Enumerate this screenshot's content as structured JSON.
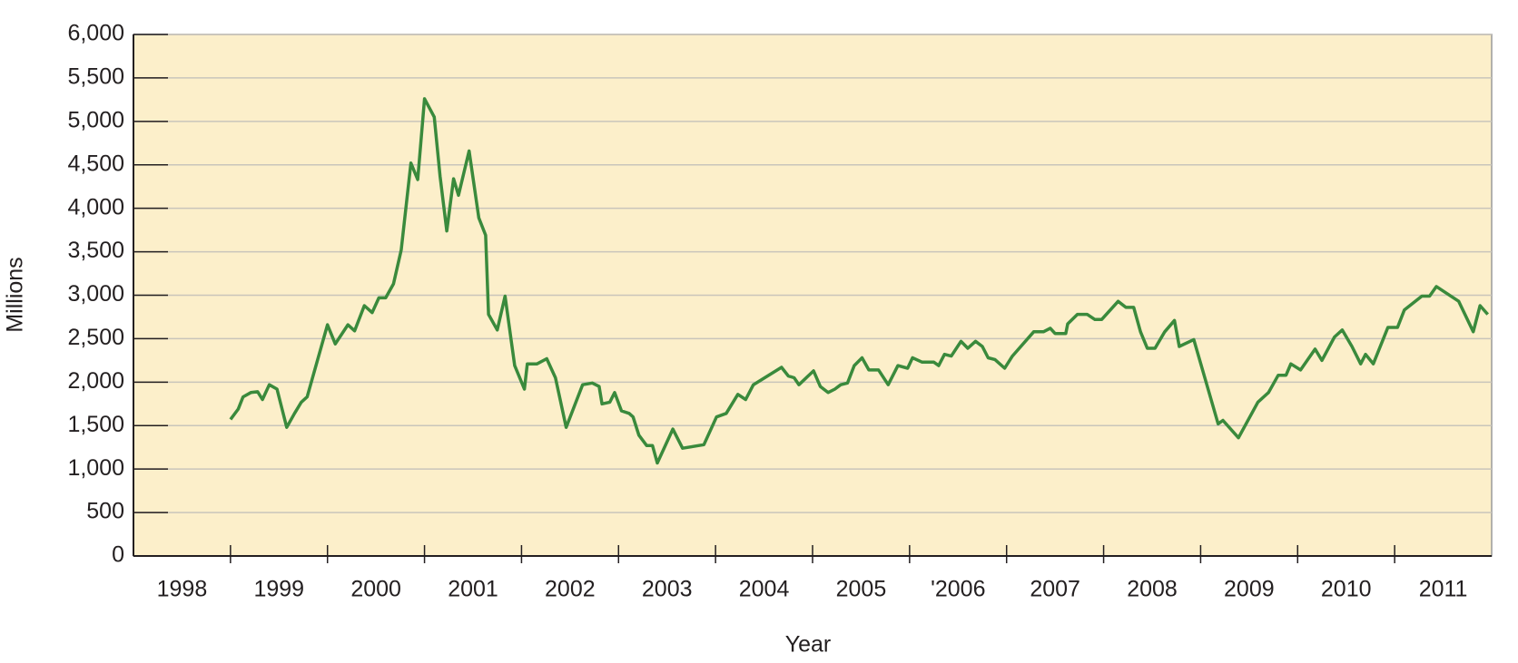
{
  "chart_data": {
    "type": "line",
    "x_label": "Year",
    "y_label": "Millions",
    "xlim": [
      1998,
      2012
    ],
    "ylim": [
      0,
      6000
    ],
    "xticks": [
      {
        "value": 1998.5,
        "label": "1998"
      },
      {
        "value": 1999.5,
        "label": "1999"
      },
      {
        "value": 2000.5,
        "label": "2000"
      },
      {
        "value": 2001.5,
        "label": "2001"
      },
      {
        "value": 2002.5,
        "label": "2002"
      },
      {
        "value": 2003.5,
        "label": "2003"
      },
      {
        "value": 2004.5,
        "label": "2004"
      },
      {
        "value": 2005.5,
        "label": "2005"
      },
      {
        "value": 2006.5,
        "label": "'2006"
      },
      {
        "value": 2007.5,
        "label": "2007"
      },
      {
        "value": 2008.5,
        "label": "2008"
      },
      {
        "value": 2009.5,
        "label": "2009"
      },
      {
        "value": 2010.5,
        "label": "2010"
      },
      {
        "value": 2011.5,
        "label": "2011"
      }
    ],
    "yticks": [
      0,
      500,
      {
        "value": 1000,
        "label": "1,000"
      },
      {
        "value": 1500,
        "label": "1,500"
      },
      {
        "value": 2000,
        "label": "2,000"
      },
      {
        "value": 2500,
        "label": "2,500"
      },
      {
        "value": 3000,
        "label": "3,000"
      },
      {
        "value": 3500,
        "label": "3,500"
      },
      {
        "value": 4000,
        "label": "4,000"
      },
      {
        "value": 4500,
        "label": "4,500"
      },
      {
        "value": 5000,
        "label": "5,000"
      },
      {
        "value": 5500,
        "label": "5,500"
      },
      {
        "value": 6000,
        "label": "6,000"
      }
    ],
    "grid": true,
    "x": [
      1999.0,
      1999.08,
      1999.13,
      1999.21,
      1999.28,
      1999.33,
      1999.4,
      1999.48,
      1999.58,
      1999.66,
      1999.73,
      1999.79,
      2000.0,
      2000.08,
      2000.21,
      2000.28,
      2000.38,
      2000.46,
      2000.53,
      2000.6,
      2000.68,
      2000.76,
      2000.86,
      2000.93,
      2001.0,
      2001.1,
      2001.16,
      2001.23,
      2001.3,
      2001.35,
      2001.46,
      2001.56,
      2001.63,
      2001.66,
      2001.75,
      2001.83,
      2001.93,
      2002.03,
      2002.06,
      2002.16,
      2002.26,
      2002.35,
      2002.46,
      2002.63,
      2002.73,
      2002.8,
      2002.83,
      2002.91,
      2002.96,
      2003.03,
      2003.11,
      2003.15,
      2003.21,
      2003.29,
      2003.35,
      2003.4,
      2003.56,
      2003.66,
      2003.88,
      2004.01,
      2004.11,
      2004.23,
      2004.31,
      2004.39,
      2004.68,
      2004.75,
      2004.81,
      2004.86,
      2005.01,
      2005.08,
      2005.16,
      2005.23,
      2005.29,
      2005.36,
      2005.43,
      2005.51,
      2005.58,
      2005.68,
      2005.78,
      2005.88,
      2005.98,
      2006.03,
      2006.13,
      2006.25,
      2006.3,
      2006.36,
      2006.43,
      2006.53,
      2006.6,
      2006.68,
      2006.75,
      2006.81,
      2006.88,
      2006.98,
      2007.06,
      2007.28,
      2007.38,
      2007.45,
      2007.5,
      2007.61,
      2007.63,
      2007.73,
      2007.83,
      2007.91,
      2007.98,
      2008.15,
      2008.23,
      2008.31,
      2008.38,
      2008.45,
      2008.53,
      2008.63,
      2008.73,
      2008.78,
      2008.93,
      2009.18,
      2009.23,
      2009.39,
      2009.59,
      2009.7,
      2009.8,
      2009.88,
      2009.93,
      2010.03,
      2010.18,
      2010.25,
      2010.38,
      2010.46,
      2010.56,
      2010.65,
      2010.7,
      2010.78,
      2010.93,
      2011.03,
      2011.1,
      2011.28,
      2011.36,
      2011.43,
      2011.66,
      2011.81,
      2011.88,
      2011.96
    ],
    "series": [
      {
        "color": "#3a8a3c",
        "values": [
          1572,
          1690,
          1830,
          1880,
          1890,
          1800,
          1970,
          1920,
          1480,
          1640,
          1770,
          1830,
          2660,
          2440,
          2660,
          2590,
          2880,
          2800,
          2970,
          2970,
          3130,
          3520,
          4520,
          4330,
          5260,
          5050,
          4370,
          3740,
          4340,
          4150,
          4660,
          3890,
          3690,
          2780,
          2600,
          2990,
          2190,
          1920,
          2210,
          2210,
          2270,
          2050,
          1480,
          1970,
          1990,
          1950,
          1750,
          1770,
          1880,
          1670,
          1640,
          1600,
          1390,
          1270,
          1270,
          1070,
          1460,
          1240,
          1280,
          1600,
          1640,
          1860,
          1800,
          1970,
          2170,
          2070,
          2050,
          1970,
          2130,
          1950,
          1880,
          1920,
          1970,
          1990,
          2190,
          2280,
          2140,
          2140,
          1970,
          2190,
          2160,
          2280,
          2230,
          2230,
          2190,
          2320,
          2300,
          2470,
          2390,
          2470,
          2410,
          2280,
          2260,
          2160,
          2300,
          2580,
          2580,
          2620,
          2560,
          2560,
          2670,
          2780,
          2780,
          2720,
          2720,
          2930,
          2860,
          2860,
          2580,
          2390,
          2390,
          2580,
          2710,
          2410,
          2490,
          1520,
          1560,
          1360,
          1770,
          1880,
          2080,
          2080,
          2210,
          2140,
          2380,
          2250,
          2520,
          2600,
          2410,
          2210,
          2320,
          2210,
          2630,
          2630,
          2830,
          2990,
          2990,
          3100,
          2930,
          2580,
          2880,
          2780
        ]
      }
    ]
  }
}
